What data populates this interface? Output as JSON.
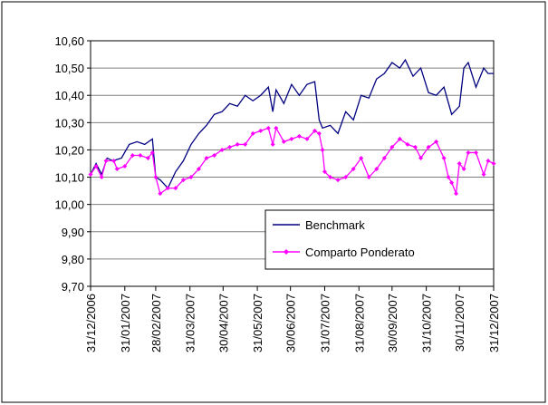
{
  "chart_data": {
    "type": "line",
    "xlim": [
      0,
      365
    ],
    "xticks": [
      {
        "value": 0,
        "label": "31/12/2006"
      },
      {
        "value": 31,
        "label": "31/01/2007"
      },
      {
        "value": 59,
        "label": "28/02/2007"
      },
      {
        "value": 90,
        "label": "31/03/2007"
      },
      {
        "value": 120,
        "label": "30/04/2007"
      },
      {
        "value": 151,
        "label": "31/05/2007"
      },
      {
        "value": 181,
        "label": "30/06/2007"
      },
      {
        "value": 212,
        "label": "31/07/2007"
      },
      {
        "value": 243,
        "label": "31/08/2007"
      },
      {
        "value": 273,
        "label": "30/09/2007"
      },
      {
        "value": 304,
        "label": "31/10/2007"
      },
      {
        "value": 334,
        "label": "30/11/2007"
      },
      {
        "value": 365,
        "label": "31/12/2007"
      }
    ],
    "ylim": [
      9.7,
      10.6
    ],
    "yticks": [
      {
        "value": 9.7,
        "label": "9,70"
      },
      {
        "value": 9.8,
        "label": "9,80"
      },
      {
        "value": 9.9,
        "label": "9,90"
      },
      {
        "value": 10.0,
        "label": "10,00"
      },
      {
        "value": 10.1,
        "label": "10,10"
      },
      {
        "value": 10.2,
        "label": "10,20"
      },
      {
        "value": 10.3,
        "label": "10,30"
      },
      {
        "value": 10.4,
        "label": "10,40"
      },
      {
        "value": 10.5,
        "label": "10,50"
      },
      {
        "value": 10.6,
        "label": "10,60"
      }
    ],
    "grid": true,
    "series": [
      {
        "name": "Benchmark",
        "color": "#000080",
        "marker": false,
        "x": [
          0,
          5,
          10,
          15,
          20,
          28,
          35,
          42,
          49,
          56,
          59,
          63,
          70,
          77,
          84,
          91,
          98,
          105,
          112,
          119,
          126,
          133,
          140,
          147,
          154,
          161,
          165,
          168,
          175,
          182,
          189,
          196,
          203,
          207,
          210,
          217,
          224,
          231,
          238,
          245,
          252,
          259,
          266,
          273,
          280,
          285,
          292,
          299,
          306,
          313,
          320,
          327,
          334,
          338,
          342,
          349,
          356,
          360,
          365
        ],
        "values": [
          10.11,
          10.15,
          10.11,
          10.17,
          10.16,
          10.17,
          10.22,
          10.23,
          10.22,
          10.24,
          10.1,
          10.09,
          10.06,
          10.12,
          10.16,
          10.22,
          10.26,
          10.29,
          10.33,
          10.34,
          10.37,
          10.36,
          10.4,
          10.38,
          10.4,
          10.43,
          10.34,
          10.42,
          10.37,
          10.44,
          10.4,
          10.44,
          10.45,
          10.31,
          10.28,
          10.29,
          10.26,
          10.34,
          10.31,
          10.4,
          10.39,
          10.46,
          10.48,
          10.52,
          10.5,
          10.53,
          10.47,
          10.5,
          10.41,
          10.4,
          10.43,
          10.33,
          10.36,
          10.5,
          10.52,
          10.43,
          10.5,
          10.48,
          10.48
        ]
      },
      {
        "name": "Comparto Ponderato",
        "color": "#ff00ff",
        "marker": true,
        "x": [
          0,
          5,
          10,
          14,
          21,
          24,
          31,
          38,
          45,
          52,
          56,
          59,
          63,
          70,
          77,
          84,
          91,
          98,
          105,
          112,
          119,
          126,
          133,
          140,
          147,
          154,
          161,
          165,
          168,
          175,
          182,
          189,
          196,
          203,
          207,
          210,
          212,
          217,
          224,
          231,
          238,
          245,
          252,
          259,
          266,
          273,
          280,
          287,
          294,
          299,
          306,
          313,
          320,
          324,
          327,
          331,
          334,
          338,
          342,
          349,
          356,
          360,
          365
        ],
        "values": [
          10.11,
          10.14,
          10.1,
          10.16,
          10.16,
          10.13,
          10.14,
          10.18,
          10.18,
          10.17,
          10.19,
          10.1,
          10.04,
          10.06,
          10.06,
          10.09,
          10.1,
          10.13,
          10.17,
          10.18,
          10.2,
          10.21,
          10.22,
          10.22,
          10.26,
          10.27,
          10.28,
          10.22,
          10.28,
          10.23,
          10.24,
          10.25,
          10.24,
          10.27,
          10.26,
          10.2,
          10.12,
          10.1,
          10.09,
          10.1,
          10.13,
          10.17,
          10.1,
          10.13,
          10.17,
          10.21,
          10.24,
          10.22,
          10.21,
          10.17,
          10.21,
          10.23,
          10.17,
          10.1,
          10.08,
          10.04,
          10.15,
          10.13,
          10.19,
          10.19,
          10.11,
          10.16,
          10.15
        ]
      }
    ]
  }
}
